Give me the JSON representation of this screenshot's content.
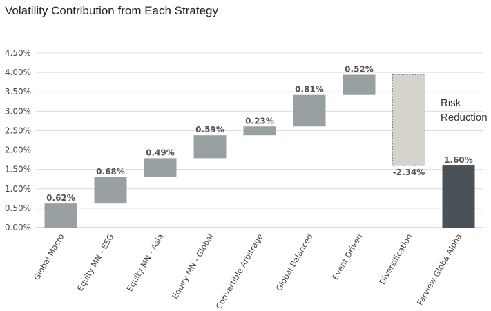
{
  "chart_data": {
    "type": "bar",
    "title": "Volatility Contribution from Each Strategy",
    "xlabel": "",
    "ylabel": "",
    "ylim": [
      0,
      4.5
    ],
    "y_ticks": [
      "0.00%",
      "0.50%",
      "1.00%",
      "1.50%",
      "2.00%",
      "2.50%",
      "3.00%",
      "3.50%",
      "4.00%",
      "4.50%"
    ],
    "grid": true,
    "categories": [
      "Global Macro",
      "Equity MN - ESG",
      "Equity MN - Asia",
      "Equity MN - Global",
      "Convertible Arbitrage",
      "Global Balanced",
      "Event Driven",
      "Diversification",
      "Farview Globa Alpha"
    ],
    "bars": [
      {
        "start": 0.0,
        "end": 0.62,
        "label": "0.62%",
        "kind": "increase"
      },
      {
        "start": 0.62,
        "end": 1.3,
        "label": "0.68%",
        "kind": "increase"
      },
      {
        "start": 1.3,
        "end": 1.79,
        "label": "0.49%",
        "kind": "increase"
      },
      {
        "start": 1.79,
        "end": 2.38,
        "label": "0.59%",
        "kind": "increase"
      },
      {
        "start": 2.38,
        "end": 2.61,
        "label": "0.23%",
        "kind": "increase"
      },
      {
        "start": 2.61,
        "end": 3.42,
        "label": "0.81%",
        "kind": "increase"
      },
      {
        "start": 3.42,
        "end": 3.94,
        "label": "0.52%",
        "kind": "increase"
      },
      {
        "start": 3.94,
        "end": 1.6,
        "label": "-2.34%",
        "kind": "decrease"
      },
      {
        "start": 0.0,
        "end": 1.6,
        "label": "1.60%",
        "kind": "total"
      }
    ],
    "annotations": [
      "Risk",
      "Reduction"
    ],
    "colors": {
      "increase": "#98a0a3",
      "decrease": "#d6d3cd",
      "total": "#4a5259",
      "grid": "#dcdcdc",
      "axis": "#bbbbbb"
    }
  }
}
